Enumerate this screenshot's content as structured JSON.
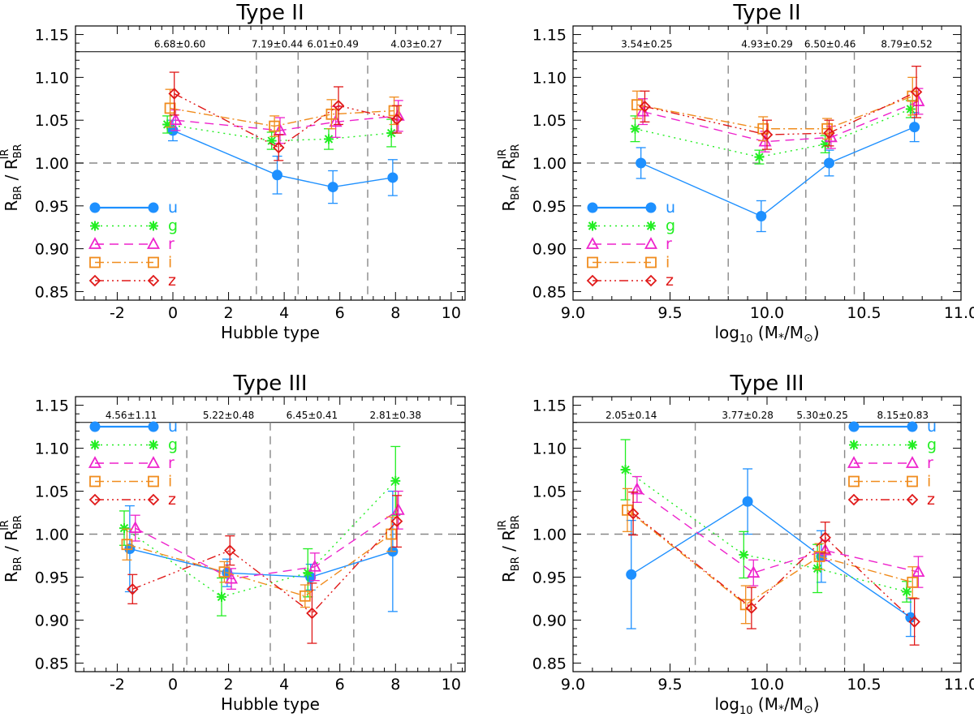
{
  "figure": {
    "styles": {
      "u": {
        "color": "#1E90FF",
        "dash": "",
        "marker": "circle"
      },
      "g": {
        "color": "#22EE22",
        "dash": "2,5",
        "marker": "asterisk"
      },
      "r": {
        "color": "#EE22CC",
        "dash": "11,7",
        "marker": "triangle"
      },
      "i": {
        "color": "#F08C1E",
        "dash": "11,4,2,4",
        "marker": "square"
      },
      "z": {
        "color": "#E01818",
        "dash": "11,4,2,4,2,4,2,4",
        "marker": "diamond"
      }
    },
    "ref_line_color": "#888888"
  },
  "chart_data": [
    {
      "type": "line",
      "title": "Type II",
      "xlabel": "Hubble type",
      "ylabel_main": "R",
      "ylabel_sub": "BR",
      "ylabel_sep": " / R",
      "ylabel_sup": "IR",
      "xlim": [
        -3.5,
        10.5
      ],
      "ylim": [
        0.84,
        1.16
      ],
      "strip_y": 1.13,
      "ref_y": 1.0,
      "xticks": [
        -2,
        0,
        2,
        4,
        6,
        8,
        10
      ],
      "xtick_labels": [
        "-2",
        "0",
        "2",
        "4",
        "6",
        "8",
        "10"
      ],
      "yticks": [
        0.85,
        0.9,
        0.95,
        1.0,
        1.05,
        1.1,
        1.15
      ],
      "ytick_labels": [
        "0.85",
        "0.90",
        "0.95",
        "1.00",
        "1.05",
        "1.10",
        "1.15"
      ],
      "vlines": [
        3,
        4.5,
        7
      ],
      "band_labels": [
        {
          "x": 0.25,
          "text": "6.68±0.60"
        },
        {
          "x": 3.75,
          "text": "7.19±0.44"
        },
        {
          "x": 5.75,
          "text": "6.01±0.49"
        },
        {
          "x": 8.75,
          "text": "4.03±0.27"
        }
      ],
      "legend": {
        "position": "bottom-left",
        "entries": [
          "u",
          "g",
          "r",
          "i",
          "z"
        ]
      },
      "series": [
        {
          "name": "u",
          "x": [
            0.0,
            3.75,
            5.75,
            7.9
          ],
          "y": [
            1.038,
            0.986,
            0.972,
            0.983
          ],
          "err": [
            0.012,
            0.022,
            0.019,
            0.021
          ]
        },
        {
          "name": "g",
          "x": [
            -0.2,
            3.55,
            5.6,
            7.85
          ],
          "y": [
            1.045,
            1.026,
            1.028,
            1.035
          ],
          "err": [
            0.01,
            0.01,
            0.012,
            0.016
          ]
        },
        {
          "name": "r",
          "x": [
            0.1,
            3.85,
            5.85,
            8.1
          ],
          "y": [
            1.05,
            1.038,
            1.048,
            1.055
          ],
          "err": [
            0.012,
            0.015,
            0.018,
            0.018
          ]
        },
        {
          "name": "i",
          "x": [
            -0.1,
            3.65,
            5.7,
            7.95
          ],
          "y": [
            1.064,
            1.043,
            1.057,
            1.061
          ],
          "err": [
            0.022,
            0.012,
            0.017,
            0.016
          ]
        },
        {
          "name": "z",
          "x": [
            0.05,
            3.8,
            5.95,
            8.05
          ],
          "y": [
            1.081,
            1.018,
            1.067,
            1.051
          ],
          "err": [
            0.025,
            0.015,
            0.022,
            0.016
          ]
        }
      ]
    },
    {
      "type": "line",
      "title": "Type II",
      "xlabel_pre": "log",
      "xlabel_sub": "10",
      "xlabel_post": " (M",
      "xlabel_star": "*",
      "xlabel_mid": "/M",
      "xlabel_sun": "⊙",
      "xlabel_end": ")",
      "ylabel_main": "R",
      "ylabel_sub": "BR",
      "ylabel_sep": " / R",
      "ylabel_sup": "IR",
      "xlim": [
        9.0,
        11.0
      ],
      "ylim": [
        0.84,
        1.16
      ],
      "strip_y": 1.13,
      "ref_y": 1.0,
      "xticks": [
        9.0,
        9.5,
        10.0,
        10.5,
        11.0
      ],
      "xtick_labels": [
        "9.0",
        "9.5",
        "10.0",
        "10.5",
        "11.0"
      ],
      "yticks": [
        0.85,
        0.9,
        0.95,
        1.0,
        1.05,
        1.1,
        1.15
      ],
      "ytick_labels": [
        "0.85",
        "0.90",
        "0.95",
        "1.00",
        "1.05",
        "1.10",
        "1.15"
      ],
      "vlines": [
        9.8,
        10.2,
        10.45
      ],
      "band_labels": [
        {
          "x": 9.38,
          "text": "3.54±0.25"
        },
        {
          "x": 10.0,
          "text": "4.93±0.29"
        },
        {
          "x": 10.325,
          "text": "6.50±0.46"
        },
        {
          "x": 10.72,
          "text": "8.79±0.52"
        }
      ],
      "legend": {
        "position": "bottom-left",
        "entries": [
          "u",
          "g",
          "r",
          "i",
          "z"
        ]
      },
      "series": [
        {
          "name": "u",
          "x": [
            9.35,
            9.97,
            10.32,
            10.76
          ],
          "y": [
            1.0,
            0.938,
            1.0,
            1.042
          ],
          "err": [
            0.018,
            0.018,
            0.015,
            0.017
          ]
        },
        {
          "name": "g",
          "x": [
            9.32,
            9.96,
            10.3,
            10.74
          ],
          "y": [
            1.04,
            1.007,
            1.022,
            1.063
          ],
          "err": [
            0.015,
            0.008,
            0.01,
            0.01
          ]
        },
        {
          "name": "r",
          "x": [
            9.36,
            9.99,
            10.33,
            10.78
          ],
          "y": [
            1.06,
            1.025,
            1.03,
            1.072
          ],
          "err": [
            0.015,
            0.012,
            0.013,
            0.015
          ]
        },
        {
          "name": "i",
          "x": [
            9.33,
            9.98,
            10.31,
            10.75
          ],
          "y": [
            1.068,
            1.04,
            1.04,
            1.078
          ],
          "err": [
            0.016,
            0.014,
            0.012,
            0.022
          ]
        },
        {
          "name": "z",
          "x": [
            9.37,
            10.0,
            10.32,
            10.77
          ],
          "y": [
            1.066,
            1.033,
            1.035,
            1.083
          ],
          "err": [
            0.018,
            0.017,
            0.015,
            0.03
          ]
        }
      ]
    },
    {
      "type": "line",
      "title": "Type III",
      "xlabel": "Hubble type",
      "ylabel_main": "R",
      "ylabel_sub": "BR",
      "ylabel_sep": " / R",
      "ylabel_sup": "IR",
      "xlim": [
        -3.5,
        10.5
      ],
      "ylim": [
        0.84,
        1.16
      ],
      "strip_y": 1.13,
      "ref_y": 1.0,
      "xticks": [
        -2,
        0,
        2,
        4,
        6,
        8,
        10
      ],
      "xtick_labels": [
        "-2",
        "0",
        "2",
        "4",
        "6",
        "8",
        "10"
      ],
      "yticks": [
        0.85,
        0.9,
        0.95,
        1.0,
        1.05,
        1.1,
        1.15
      ],
      "ytick_labels": [
        "0.85",
        "0.90",
        "0.95",
        "1.00",
        "1.05",
        "1.10",
        "1.15"
      ],
      "vlines": [
        0.5,
        3.5,
        6.5
      ],
      "band_labels": [
        {
          "x": -1.5,
          "text": "4.56±1.11"
        },
        {
          "x": 2.0,
          "text": "5.22±0.48"
        },
        {
          "x": 5.0,
          "text": "6.45±0.41"
        },
        {
          "x": 8.0,
          "text": "2.81±0.38"
        }
      ],
      "legend": {
        "position": "top-left",
        "entries": [
          "u",
          "g",
          "r",
          "i",
          "z"
        ]
      },
      "series": [
        {
          "name": "u",
          "x": [
            -1.55,
            1.95,
            4.95,
            7.9
          ],
          "y": [
            0.983,
            0.955,
            0.95,
            0.98
          ],
          "err": [
            0.05,
            0.016,
            0.015,
            0.07
          ]
        },
        {
          "name": "g",
          "x": [
            -1.75,
            1.75,
            4.85,
            8.0
          ],
          "y": [
            1.007,
            0.927,
            0.955,
            1.062
          ],
          "err": [
            0.02,
            0.022,
            0.028,
            0.04
          ]
        },
        {
          "name": "r",
          "x": [
            -1.35,
            2.1,
            5.1,
            8.1
          ],
          "y": [
            1.007,
            0.948,
            0.962,
            1.028
          ],
          "err": [
            0.015,
            0.012,
            0.016,
            0.022
          ]
        },
        {
          "name": "i",
          "x": [
            -1.65,
            1.85,
            4.75,
            7.85
          ],
          "y": [
            0.988,
            0.956,
            0.928,
            1.0
          ],
          "err": [
            0.018,
            0.012,
            0.013,
            0.02
          ]
        },
        {
          "name": "z",
          "x": [
            -1.45,
            2.05,
            5.0,
            8.05
          ],
          "y": [
            0.936,
            0.981,
            0.908,
            1.015
          ],
          "err": [
            0.017,
            0.017,
            0.035,
            0.03
          ]
        }
      ]
    },
    {
      "type": "line",
      "title": "Type III",
      "xlabel_pre": "log",
      "xlabel_sub": "10",
      "xlabel_post": " (M",
      "xlabel_star": "*",
      "xlabel_mid": "/M",
      "xlabel_sun": "⊙",
      "xlabel_end": ")",
      "ylabel_main": "R",
      "ylabel_sub": "BR",
      "ylabel_sep": " / R",
      "ylabel_sup": "IR",
      "xlim": [
        9.0,
        11.0
      ],
      "ylim": [
        0.84,
        1.16
      ],
      "strip_y": 1.13,
      "ref_y": 1.0,
      "xticks": [
        9.0,
        9.5,
        10.0,
        10.5,
        11.0
      ],
      "xtick_labels": [
        "9.0",
        "9.5",
        "10.0",
        "10.5",
        "11.0"
      ],
      "yticks": [
        0.85,
        0.9,
        0.95,
        1.0,
        1.05,
        1.1,
        1.15
      ],
      "ytick_labels": [
        "0.85",
        "0.90",
        "0.95",
        "1.00",
        "1.05",
        "1.10",
        "1.15"
      ],
      "vlines": [
        9.63,
        10.17,
        10.4
      ],
      "band_labels": [
        {
          "x": 9.3,
          "text": "2.05±0.14"
        },
        {
          "x": 9.9,
          "text": "3.77±0.28"
        },
        {
          "x": 10.285,
          "text": "5.30±0.25"
        },
        {
          "x": 10.7,
          "text": "8.15±0.83"
        }
      ],
      "legend": {
        "position": "top-right",
        "entries": [
          "u",
          "g",
          "r",
          "i",
          "z"
        ]
      },
      "series": [
        {
          "name": "u",
          "x": [
            9.3,
            9.9,
            10.28,
            10.74
          ],
          "y": [
            0.953,
            1.038,
            0.974,
            0.903
          ],
          "err": [
            0.063,
            0.038,
            0.03,
            0.022
          ]
        },
        {
          "name": "g",
          "x": [
            9.27,
            9.88,
            10.26,
            10.72
          ],
          "y": [
            1.075,
            0.976,
            0.96,
            0.933
          ],
          "err": [
            0.035,
            0.027,
            0.028,
            0.012
          ]
        },
        {
          "name": "r",
          "x": [
            9.33,
            9.93,
            10.3,
            10.78
          ],
          "y": [
            1.052,
            0.955,
            0.981,
            0.956
          ],
          "err": [
            0.015,
            0.015,
            0.012,
            0.018
          ]
        },
        {
          "name": "i",
          "x": [
            9.28,
            9.89,
            10.27,
            10.75
          ],
          "y": [
            1.028,
            0.918,
            0.974,
            0.944
          ],
          "err": [
            0.025,
            0.022,
            0.015,
            0.018
          ]
        },
        {
          "name": "z",
          "x": [
            9.31,
            9.92,
            10.3,
            10.76
          ],
          "y": [
            1.024,
            0.914,
            0.996,
            0.898
          ],
          "err": [
            0.025,
            0.024,
            0.018,
            0.027
          ]
        }
      ]
    }
  ]
}
